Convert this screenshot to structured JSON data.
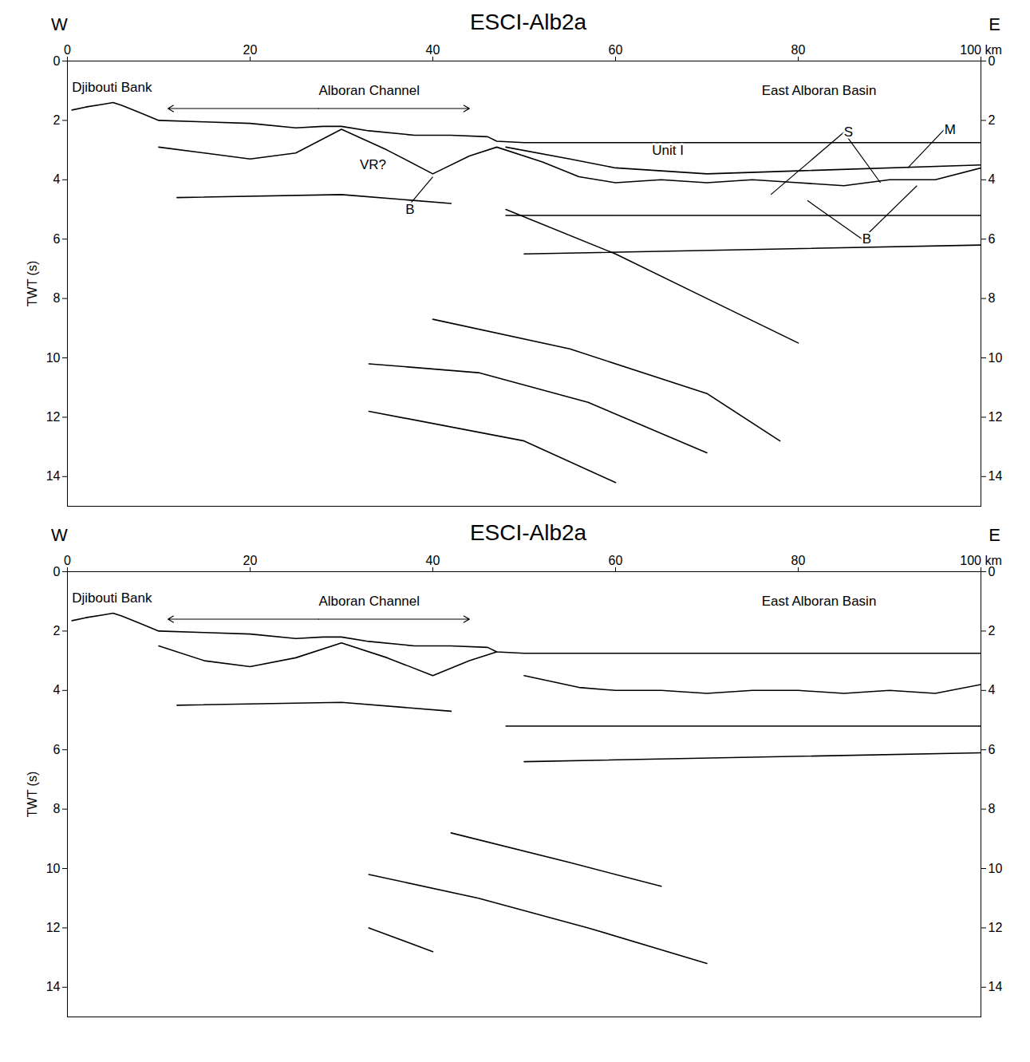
{
  "chart_data": [
    {
      "type": "line",
      "title": "ESCI-Alb2a",
      "corner_labels": {
        "left": "W",
        "right": "E"
      },
      "y_label": "TWT (s)",
      "xlim": [
        0,
        100
      ],
      "ylim": [
        0,
        15
      ],
      "xticks": [
        0,
        20,
        40,
        60,
        80,
        {
          "value": 100,
          "label": "100 km"
        }
      ],
      "yticks": [
        0,
        2,
        4,
        6,
        8,
        10,
        12,
        14
      ],
      "grid": false,
      "annotations": [
        {
          "text": "Djibouti Bank",
          "x": 0.5,
          "y": 0.9
        },
        {
          "text": "Alboran Channel",
          "x": 27.5,
          "y": 1.0,
          "arrow": [
            11,
            44
          ],
          "arrow_y": 1.6
        },
        {
          "text": "East Alboran Basin",
          "x": 76,
          "y": 1.0
        },
        {
          "text": "VR?",
          "x": 32,
          "y": 3.5
        },
        {
          "text": "B",
          "x": 37,
          "y": 5.0,
          "targets": [
            [
              40,
              3.9
            ]
          ]
        },
        {
          "text": "Unit I",
          "x": 64,
          "y": 3.0
        },
        {
          "text": "S",
          "x": 85,
          "y": 2.4,
          "targets": [
            [
              77,
              4.5
            ],
            [
              89,
              4.1
            ]
          ]
        },
        {
          "text": "M",
          "x": 96,
          "y": 2.3,
          "targets": [
            [
              92,
              3.6
            ]
          ]
        },
        {
          "text": "B",
          "x": 87,
          "y": 6.0,
          "targets": [
            [
              81,
              4.7
            ],
            [
              93,
              4.2
            ]
          ]
        }
      ],
      "series": [
        {
          "color": "#000000",
          "x": [
            0.5,
            2,
            4,
            5,
            6,
            8,
            10,
            15,
            20,
            25,
            28,
            30,
            33,
            38,
            42,
            46,
            47,
            50,
            60,
            80,
            100
          ],
          "values": [
            1.65,
            1.55,
            1.45,
            1.4,
            1.5,
            1.75,
            2.0,
            2.05,
            2.1,
            2.25,
            2.2,
            2.2,
            2.35,
            2.5,
            2.5,
            2.55,
            2.7,
            2.75,
            2.75,
            2.75,
            2.75
          ]
        },
        {
          "color": "#000000",
          "x": [
            10,
            15,
            20,
            25,
            30,
            35,
            40,
            44,
            47,
            52,
            56,
            60,
            65,
            70,
            75,
            80,
            85,
            90,
            95,
            100
          ],
          "values": [
            2.9,
            3.1,
            3.3,
            3.1,
            2.3,
            3.0,
            3.8,
            3.2,
            2.9,
            3.4,
            3.9,
            4.1,
            4.0,
            4.1,
            4.0,
            4.1,
            4.2,
            4.0,
            4.0,
            3.6
          ]
        },
        {
          "color": "#000000",
          "x": [
            48,
            55,
            60,
            70,
            80,
            100
          ],
          "values": [
            2.9,
            3.3,
            3.6,
            3.8,
            3.7,
            3.5
          ]
        },
        {
          "color": "#000000",
          "x": [
            12,
            30,
            42
          ],
          "values": [
            4.6,
            4.5,
            4.8
          ]
        },
        {
          "color": "#000000",
          "x": [
            48,
            100
          ],
          "values": [
            5.2,
            5.2
          ]
        },
        {
          "color": "#000000",
          "x": [
            50,
            100
          ],
          "values": [
            6.5,
            6.2
          ]
        },
        {
          "color": "#000000",
          "x": [
            48,
            60,
            70,
            80
          ],
          "values": [
            5.0,
            6.5,
            8.0,
            9.5
          ]
        },
        {
          "color": "#000000",
          "x": [
            40,
            55,
            70,
            78
          ],
          "values": [
            8.7,
            9.7,
            11.2,
            12.8
          ]
        },
        {
          "color": "#000000",
          "x": [
            33,
            45,
            57,
            70
          ],
          "values": [
            10.2,
            10.5,
            11.5,
            13.2
          ]
        },
        {
          "color": "#000000",
          "x": [
            33,
            50,
            60
          ],
          "values": [
            11.8,
            12.8,
            14.2
          ]
        }
      ]
    },
    {
      "type": "line",
      "title": "ESCI-Alb2a",
      "corner_labels": {
        "left": "W",
        "right": "E"
      },
      "y_label": "TWT (s)",
      "xlim": [
        0,
        100
      ],
      "ylim": [
        0,
        15
      ],
      "xticks": [
        0,
        20,
        40,
        60,
        80,
        {
          "value": 100,
          "label": "100 km"
        }
      ],
      "yticks": [
        0,
        2,
        4,
        6,
        8,
        10,
        12,
        14
      ],
      "grid": false,
      "annotations": [
        {
          "text": "Djibouti Bank",
          "x": 0.5,
          "y": 0.9
        },
        {
          "text": "Alboran Channel",
          "x": 27.5,
          "y": 1.0,
          "arrow": [
            11,
            44
          ],
          "arrow_y": 1.6
        },
        {
          "text": "East Alboran Basin",
          "x": 76,
          "y": 1.0
        }
      ],
      "series": [
        {
          "color": "#000000",
          "x": [
            0.5,
            2,
            4,
            5,
            6,
            8,
            10,
            15,
            20,
            25,
            28,
            30,
            33,
            38,
            42,
            46,
            47,
            50,
            60,
            80,
            100
          ],
          "values": [
            1.65,
            1.55,
            1.45,
            1.4,
            1.5,
            1.75,
            2.0,
            2.05,
            2.1,
            2.25,
            2.2,
            2.2,
            2.35,
            2.5,
            2.5,
            2.55,
            2.7,
            2.75,
            2.75,
            2.75,
            2.75
          ]
        },
        {
          "color": "#000000",
          "x": [
            10,
            15,
            20,
            25,
            30,
            35,
            40,
            44,
            47
          ],
          "values": [
            2.5,
            3.0,
            3.2,
            2.9,
            2.4,
            2.9,
            3.5,
            3.0,
            2.7
          ]
        },
        {
          "color": "#000000",
          "x": [
            50,
            56,
            60,
            65,
            70,
            75,
            80,
            85,
            90,
            95,
            100
          ],
          "values": [
            3.5,
            3.9,
            4.0,
            4.0,
            4.1,
            4.0,
            4.0,
            4.1,
            4.0,
            4.1,
            3.8
          ]
        },
        {
          "color": "#000000",
          "x": [
            12,
            30,
            42
          ],
          "values": [
            4.5,
            4.4,
            4.7
          ]
        },
        {
          "color": "#000000",
          "x": [
            48,
            100
          ],
          "values": [
            5.2,
            5.2
          ]
        },
        {
          "color": "#000000",
          "x": [
            50,
            100
          ],
          "values": [
            6.4,
            6.1
          ]
        },
        {
          "color": "#000000",
          "x": [
            42,
            55,
            65
          ],
          "values": [
            8.8,
            9.8,
            10.6
          ]
        },
        {
          "color": "#000000",
          "x": [
            33,
            45,
            57,
            70
          ],
          "values": [
            10.2,
            11.0,
            12.0,
            13.2
          ]
        },
        {
          "color": "#000000",
          "x": [
            33,
            40
          ],
          "values": [
            12.0,
            12.8
          ]
        }
      ]
    }
  ]
}
